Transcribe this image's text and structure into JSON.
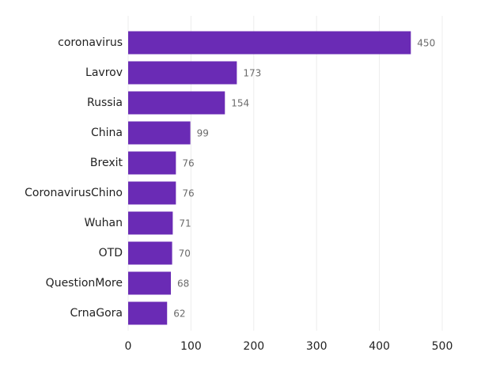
{
  "chart_data": {
    "type": "bar",
    "orientation": "horizontal",
    "categories": [
      "coronavirus",
      "Lavrov",
      "Russia",
      "China",
      "Brexit",
      "CoronavirusChino",
      "Wuhan",
      "OTD",
      "QuestionMore",
      "CrnaGora"
    ],
    "values": [
      450,
      173,
      154,
      99,
      76,
      76,
      71,
      70,
      68,
      62
    ],
    "value_labels": [
      "450",
      "173",
      "154",
      "99",
      "76",
      "76",
      "71",
      "70",
      "68",
      "62"
    ],
    "x_ticks": [
      "0",
      "100",
      "200",
      "300",
      "400",
      "500"
    ],
    "xlim": [
      0,
      500
    ],
    "grid": true,
    "legend": "none",
    "bar_color": "#6a2bb5"
  }
}
